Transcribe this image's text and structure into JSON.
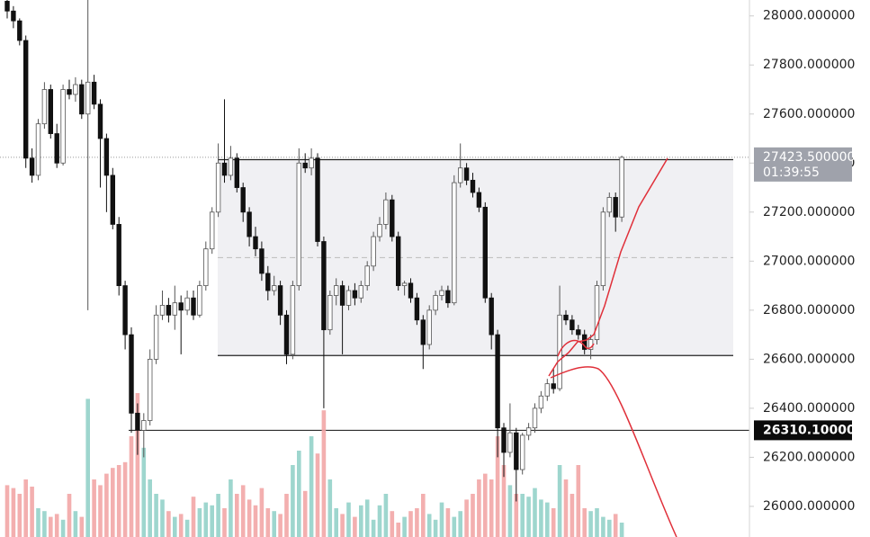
{
  "chart_data": {
    "type": "candlestick",
    "ylim": [
      25875,
      28065
    ],
    "yticks": [
      {
        "value": 28000,
        "label": "28000.000000"
      },
      {
        "value": 27800,
        "label": "27800.000000"
      },
      {
        "value": 27600,
        "label": "27600.000000"
      },
      {
        "value": 27400,
        "label": "27400.000000"
      },
      {
        "value": 27200,
        "label": "27200.000000"
      },
      {
        "value": 27000,
        "label": "27000.000000"
      },
      {
        "value": 26800,
        "label": "26800.000000"
      },
      {
        "value": 26600,
        "label": "26600.000000"
      },
      {
        "value": 26400,
        "label": "26400.000000"
      },
      {
        "value": 26200,
        "label": "26200.000000"
      },
      {
        "value": 26000,
        "label": "26000.000000"
      }
    ],
    "last_price": {
      "value": 27423.5,
      "label": "27423.500000"
    },
    "countdown": "01:39:55",
    "hline": {
      "value": 26310.1,
      "label": "26310.100000"
    },
    "range_box": {
      "top": 27414,
      "bottom": 26615
    },
    "up_color": "#ffffff",
    "down_color": "#111111",
    "volume_up_color": "#93d2c9",
    "volume_down_color": "#f2a6a6",
    "ohlc": [
      [
        28060,
        28090,
        27990,
        28020
      ],
      [
        28020,
        28040,
        27950,
        27980
      ],
      [
        27980,
        27990,
        27880,
        27900
      ],
      [
        27900,
        27920,
        27380,
        27420
      ],
      [
        27420,
        27460,
        27320,
        27350
      ],
      [
        27350,
        27580,
        27330,
        27560
      ],
      [
        27560,
        27730,
        27540,
        27700
      ],
      [
        27700,
        27720,
        27500,
        27520
      ],
      [
        27520,
        27560,
        27380,
        27400
      ],
      [
        27400,
        27720,
        27390,
        27700
      ],
      [
        27700,
        27740,
        27660,
        27680
      ],
      [
        27680,
        27750,
        27650,
        27720
      ],
      [
        27720,
        27740,
        27580,
        27600
      ],
      [
        27600,
        28100,
        26800,
        27730
      ],
      [
        27730,
        27760,
        27620,
        27640
      ],
      [
        27640,
        27660,
        27300,
        27500
      ],
      [
        27500,
        27520,
        27200,
        27350
      ],
      [
        27350,
        27380,
        27130,
        27150
      ],
      [
        27150,
        27180,
        26860,
        26900
      ],
      [
        26900,
        26920,
        26640,
        26700
      ],
      [
        26700,
        26730,
        26300,
        26380
      ],
      [
        26380,
        26420,
        26210,
        26310
      ],
      [
        26310,
        26380,
        26200,
        26350
      ],
      [
        26350,
        26640,
        26330,
        26600
      ],
      [
        26600,
        26820,
        26580,
        26780
      ],
      [
        26780,
        26880,
        26760,
        26820
      ],
      [
        26820,
        26850,
        26750,
        26780
      ],
      [
        26780,
        26900,
        26720,
        26830
      ],
      [
        26830,
        26860,
        26620,
        26800
      ],
      [
        26800,
        26880,
        26780,
        26850
      ],
      [
        26850,
        26880,
        26760,
        26780
      ],
      [
        26780,
        26920,
        26770,
        26900
      ],
      [
        26900,
        27080,
        26880,
        27050
      ],
      [
        27050,
        27220,
        27030,
        27200
      ],
      [
        27200,
        27480,
        27180,
        27400
      ],
      [
        27400,
        27660,
        27320,
        27350
      ],
      [
        27350,
        27470,
        27330,
        27420
      ],
      [
        27420,
        27440,
        27280,
        27300
      ],
      [
        27300,
        27320,
        27160,
        27200
      ],
      [
        27200,
        27220,
        27060,
        27100
      ],
      [
        27100,
        27140,
        27020,
        27050
      ],
      [
        27050,
        27080,
        26920,
        26950
      ],
      [
        26950,
        26980,
        26840,
        26880
      ],
      [
        26880,
        26940,
        26860,
        26900
      ],
      [
        26900,
        26920,
        26740,
        26780
      ],
      [
        26780,
        26800,
        26580,
        26620
      ],
      [
        26620,
        26920,
        26600,
        26900
      ],
      [
        26900,
        27460,
        26880,
        27400
      ],
      [
        27400,
        27440,
        27360,
        27380
      ],
      [
        27380,
        27460,
        27350,
        27420
      ],
      [
        27420,
        27440,
        27060,
        27080
      ],
      [
        27080,
        27100,
        26400,
        26720
      ],
      [
        26720,
        26880,
        26700,
        26860
      ],
      [
        26860,
        26930,
        26820,
        26900
      ],
      [
        26900,
        26920,
        26620,
        26820
      ],
      [
        26820,
        26900,
        26800,
        26880
      ],
      [
        26880,
        26910,
        26820,
        26850
      ],
      [
        26850,
        26920,
        26830,
        26900
      ],
      [
        26900,
        27000,
        26880,
        26980
      ],
      [
        26980,
        27120,
        26960,
        27100
      ],
      [
        27100,
        27180,
        27080,
        27150
      ],
      [
        27150,
        27280,
        27130,
        27250
      ],
      [
        27250,
        27270,
        27080,
        27100
      ],
      [
        27100,
        27120,
        26880,
        26900
      ],
      [
        26900,
        26920,
        26860,
        26910
      ],
      [
        26910,
        26930,
        26830,
        26850
      ],
      [
        26850,
        26870,
        26740,
        26760
      ],
      [
        26760,
        26780,
        26560,
        26660
      ],
      [
        26660,
        26820,
        26640,
        26800
      ],
      [
        26800,
        26880,
        26780,
        26860
      ],
      [
        26860,
        26900,
        26840,
        26880
      ],
      [
        26880,
        26900,
        26810,
        26830
      ],
      [
        26830,
        27350,
        26820,
        27320
      ],
      [
        27320,
        27480,
        27300,
        27380
      ],
      [
        27380,
        27400,
        27310,
        27330
      ],
      [
        27330,
        27360,
        27260,
        27280
      ],
      [
        27280,
        27300,
        27200,
        27220
      ],
      [
        27220,
        27240,
        26830,
        26850
      ],
      [
        26850,
        26870,
        26640,
        26700
      ],
      [
        26700,
        26720,
        26200,
        26320
      ],
      [
        26320,
        26340,
        26120,
        26220
      ],
      [
        26220,
        26420,
        26200,
        26300
      ],
      [
        26300,
        26320,
        26020,
        26150
      ],
      [
        26150,
        26300,
        26130,
        26290
      ],
      [
        26290,
        26340,
        26270,
        26320
      ],
      [
        26320,
        26420,
        26300,
        26400
      ],
      [
        26400,
        26470,
        26380,
        26450
      ],
      [
        26450,
        26520,
        26430,
        26500
      ],
      [
        26500,
        26560,
        26460,
        26480
      ],
      [
        26480,
        26900,
        26470,
        26780
      ],
      [
        26780,
        26800,
        26740,
        26760
      ],
      [
        26760,
        26780,
        26700,
        26720
      ],
      [
        26720,
        26740,
        26680,
        26700
      ],
      [
        26700,
        26720,
        26620,
        26640
      ],
      [
        26640,
        26700,
        26600,
        26680
      ],
      [
        26680,
        26920,
        26660,
        26900
      ],
      [
        26900,
        27220,
        26880,
        27200
      ],
      [
        27200,
        27280,
        27180,
        27260
      ],
      [
        27260,
        27280,
        27120,
        27180
      ],
      [
        27180,
        27430,
        27160,
        27423.5
      ]
    ],
    "volumes": [
      36,
      34,
      30,
      40,
      35,
      20,
      18,
      14,
      16,
      12,
      30,
      18,
      14,
      96,
      40,
      36,
      44,
      48,
      50,
      52,
      70,
      100,
      62,
      40,
      30,
      26,
      18,
      14,
      16,
      12,
      28,
      20,
      24,
      22,
      30,
      20,
      40,
      30,
      36,
      26,
      22,
      34,
      20,
      18,
      16,
      30,
      50,
      60,
      32,
      70,
      58,
      88,
      40,
      20,
      16,
      24,
      14,
      22,
      26,
      12,
      22,
      30,
      18,
      10,
      14,
      18,
      20,
      30,
      16,
      12,
      24,
      20,
      14,
      18,
      26,
      30,
      40,
      44,
      40,
      70,
      50,
      36,
      30,
      30,
      28,
      34,
      26,
      24,
      20,
      50,
      40,
      30,
      50,
      20,
      18,
      20,
      14,
      12,
      16,
      10
    ]
  }
}
